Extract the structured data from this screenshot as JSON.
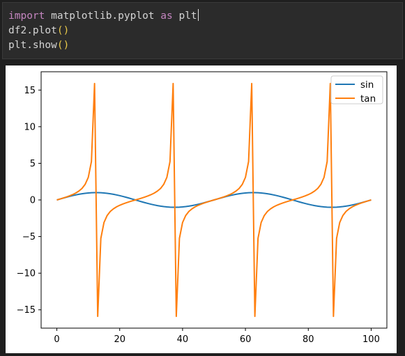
{
  "code_cell": {
    "lines": [
      {
        "tokens": [
          {
            "text": "import",
            "kind": "kw"
          },
          {
            "text": " matplotlib.pyplot ",
            "kind": "plain"
          },
          {
            "text": "as",
            "kind": "kw"
          },
          {
            "text": " plt",
            "kind": "plain"
          }
        ]
      },
      {
        "tokens": [
          {
            "text": "df2.plot",
            "kind": "plain"
          },
          {
            "text": "()",
            "kind": "paren"
          }
        ]
      },
      {
        "tokens": [
          {
            "text": "plt.show",
            "kind": "plain"
          },
          {
            "text": "()",
            "kind": "paren"
          }
        ]
      }
    ]
  },
  "chart_data": {
    "type": "line",
    "title": "",
    "xlabel": "",
    "ylabel": "",
    "xlim": [
      -5,
      105
    ],
    "ylim": [
      -17.5,
      17.5
    ],
    "xticks": [
      0,
      20,
      40,
      60,
      80,
      100
    ],
    "yticks": [
      -15,
      -10,
      -5,
      0,
      5,
      10,
      15
    ],
    "grid": false,
    "legend": "top-right",
    "x": [
      0,
      1,
      2,
      3,
      4,
      5,
      6,
      7,
      8,
      9,
      10,
      11,
      12,
      13,
      14,
      15,
      16,
      17,
      18,
      19,
      20,
      21,
      22,
      23,
      24,
      25,
      26,
      27,
      28,
      29,
      30,
      31,
      32,
      33,
      34,
      35,
      36,
      37,
      38,
      39,
      40,
      41,
      42,
      43,
      44,
      45,
      46,
      47,
      48,
      49,
      50,
      51,
      52,
      53,
      54,
      55,
      56,
      57,
      58,
      59,
      60,
      61,
      62,
      63,
      64,
      65,
      66,
      67,
      68,
      69,
      70,
      71,
      72,
      73,
      74,
      75,
      76,
      77,
      78,
      79,
      80,
      81,
      82,
      83,
      84,
      85,
      86,
      87,
      88,
      89,
      90,
      91,
      92,
      93,
      94,
      95,
      96,
      97,
      98,
      99,
      100
    ],
    "series": [
      {
        "name": "sin",
        "color": "#1f77b4",
        "values": [
          0.0,
          0.125,
          0.249,
          0.368,
          0.482,
          0.588,
          0.685,
          0.771,
          0.844,
          0.905,
          0.951,
          0.982,
          0.998,
          0.998,
          0.982,
          0.951,
          0.905,
          0.844,
          0.771,
          0.685,
          0.588,
          0.482,
          0.368,
          0.249,
          0.125,
          0.0,
          -0.125,
          -0.249,
          -0.368,
          -0.482,
          -0.588,
          -0.685,
          -0.771,
          -0.844,
          -0.905,
          -0.951,
          -0.982,
          -0.998,
          -0.998,
          -0.982,
          -0.951,
          -0.905,
          -0.844,
          -0.771,
          -0.685,
          -0.588,
          -0.482,
          -0.368,
          -0.249,
          -0.125,
          0.0,
          0.125,
          0.249,
          0.368,
          0.482,
          0.588,
          0.685,
          0.771,
          0.844,
          0.905,
          0.951,
          0.982,
          0.998,
          0.998,
          0.982,
          0.951,
          0.905,
          0.844,
          0.771,
          0.685,
          0.588,
          0.482,
          0.368,
          0.249,
          0.125,
          0.0,
          -0.125,
          -0.249,
          -0.368,
          -0.482,
          -0.588,
          -0.685,
          -0.771,
          -0.844,
          -0.905,
          -0.951,
          -0.982,
          -0.998,
          -0.998,
          -0.982,
          -0.951,
          -0.905,
          -0.844,
          -0.771,
          -0.685,
          -0.588,
          -0.482,
          -0.368,
          -0.249,
          -0.125,
          0.0
        ]
      },
      {
        "name": "tan",
        "color": "#ff7f0e",
        "values": [
          0.0,
          0.126,
          0.257,
          0.396,
          0.551,
          0.727,
          0.939,
          1.21,
          1.572,
          2.125,
          3.078,
          5.242,
          15.895,
          -15.895,
          -5.242,
          -3.078,
          -2.125,
          -1.572,
          -1.21,
          -0.939,
          -0.727,
          -0.551,
          -0.396,
          -0.257,
          -0.126,
          0.0,
          0.126,
          0.257,
          0.396,
          0.551,
          0.727,
          0.939,
          1.21,
          1.572,
          2.125,
          3.078,
          5.242,
          15.895,
          -15.895,
          -5.242,
          -3.078,
          -2.125,
          -1.572,
          -1.21,
          -0.939,
          -0.727,
          -0.551,
          -0.396,
          -0.257,
          -0.126,
          0.0,
          0.126,
          0.257,
          0.396,
          0.551,
          0.727,
          0.939,
          1.21,
          1.572,
          2.125,
          3.078,
          5.242,
          15.895,
          -15.895,
          -5.242,
          -3.078,
          -2.125,
          -1.572,
          -1.21,
          -0.939,
          -0.727,
          -0.551,
          -0.396,
          -0.257,
          -0.126,
          0.0,
          0.126,
          0.257,
          0.396,
          0.551,
          0.727,
          0.939,
          1.21,
          1.572,
          2.125,
          3.078,
          5.242,
          15.895,
          -15.895,
          -5.242,
          -3.078,
          -2.125,
          -1.572,
          -1.21,
          -0.939,
          -0.727,
          -0.551,
          -0.396,
          -0.257,
          -0.126,
          0.0
        ]
      }
    ]
  }
}
